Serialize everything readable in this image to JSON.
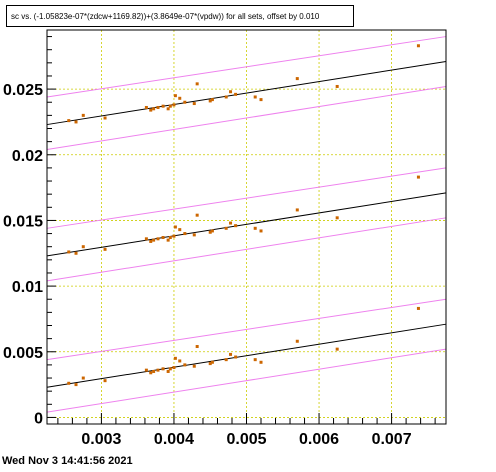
{
  "chart_data": {
    "type": "scatter",
    "title": "sc vs. (-1.05823e-07*(zdcw+1169.82))+(3.8649e-07*(vpdw)) for all sets, offset by 0.010",
    "xlabel": "",
    "ylabel": "",
    "xlim": [
      0.00225,
      0.00775
    ],
    "ylim": [
      -0.0005,
      0.0295
    ],
    "xticks": [
      0.003,
      0.004,
      0.005,
      0.006,
      0.007
    ],
    "xtick_labels": [
      "0.003",
      "0.004",
      "0.005",
      "0.006",
      "0.007"
    ],
    "yticks": [
      0,
      0.005,
      0.01,
      0.015,
      0.02,
      0.025
    ],
    "ytick_labels": [
      "0",
      "0.005",
      "0.01",
      "0.015",
      "0.02",
      "0.025"
    ],
    "grid": true,
    "series": [
      {
        "offset": 0.0,
        "points": [
          [
            0.00255,
            0.0026
          ],
          [
            0.00265,
            0.0025
          ],
          [
            0.00275,
            0.003
          ],
          [
            0.00305,
            0.0028
          ],
          [
            0.00362,
            0.0036
          ],
          [
            0.00368,
            0.0034
          ],
          [
            0.00372,
            0.0035
          ],
          [
            0.00378,
            0.0036
          ],
          [
            0.00385,
            0.0037
          ],
          [
            0.00392,
            0.0035
          ],
          [
            0.00395,
            0.0037
          ],
          [
            0.004,
            0.0038
          ],
          [
            0.00402,
            0.0045
          ],
          [
            0.00408,
            0.0043
          ],
          [
            0.00415,
            0.004
          ],
          [
            0.00428,
            0.0039
          ],
          [
            0.00432,
            0.0054
          ],
          [
            0.0045,
            0.0041
          ],
          [
            0.00453,
            0.0042
          ],
          [
            0.00472,
            0.0044
          ],
          [
            0.00478,
            0.0048
          ],
          [
            0.00485,
            0.0046
          ],
          [
            0.00512,
            0.0044
          ],
          [
            0.0052,
            0.0042
          ],
          [
            0.0057,
            0.0058
          ],
          [
            0.00625,
            0.0052
          ],
          [
            0.00737,
            0.0083
          ]
        ],
        "fit_line": [
          [
            0.00225,
            0.0023
          ],
          [
            0.00775,
            0.0071
          ]
        ],
        "band_upper": [
          [
            0.00225,
            0.0044
          ],
          [
            0.00775,
            0.009
          ]
        ],
        "band_lower": [
          [
            0.00225,
            0.0004
          ],
          [
            0.00775,
            0.0052
          ]
        ]
      },
      {
        "offset": 0.01,
        "points": [
          [
            0.00255,
            0.0126
          ],
          [
            0.00265,
            0.0125
          ],
          [
            0.00275,
            0.013
          ],
          [
            0.00305,
            0.0128
          ],
          [
            0.00362,
            0.0136
          ],
          [
            0.00368,
            0.0134
          ],
          [
            0.00372,
            0.0135
          ],
          [
            0.00378,
            0.0136
          ],
          [
            0.00385,
            0.0137
          ],
          [
            0.00392,
            0.0135
          ],
          [
            0.00395,
            0.0137
          ],
          [
            0.004,
            0.0138
          ],
          [
            0.00402,
            0.0145
          ],
          [
            0.00408,
            0.0143
          ],
          [
            0.00415,
            0.014
          ],
          [
            0.00428,
            0.0139
          ],
          [
            0.00432,
            0.0154
          ],
          [
            0.0045,
            0.0141
          ],
          [
            0.00453,
            0.0142
          ],
          [
            0.00472,
            0.0144
          ],
          [
            0.00478,
            0.0148
          ],
          [
            0.00485,
            0.0146
          ],
          [
            0.00512,
            0.0144
          ],
          [
            0.0052,
            0.0142
          ],
          [
            0.0057,
            0.0158
          ],
          [
            0.00625,
            0.0152
          ],
          [
            0.00737,
            0.0183
          ]
        ],
        "fit_line": [
          [
            0.00225,
            0.0123
          ],
          [
            0.00775,
            0.0171
          ]
        ],
        "band_upper": [
          [
            0.00225,
            0.0144
          ],
          [
            0.00775,
            0.019
          ]
        ],
        "band_lower": [
          [
            0.00225,
            0.0104
          ],
          [
            0.00775,
            0.0152
          ]
        ]
      },
      {
        "offset": 0.02,
        "points": [
          [
            0.00255,
            0.0226
          ],
          [
            0.00265,
            0.0225
          ],
          [
            0.00275,
            0.023
          ],
          [
            0.00305,
            0.0228
          ],
          [
            0.00362,
            0.0236
          ],
          [
            0.00368,
            0.0234
          ],
          [
            0.00372,
            0.0235
          ],
          [
            0.00378,
            0.0236
          ],
          [
            0.00385,
            0.0237
          ],
          [
            0.00392,
            0.0235
          ],
          [
            0.00395,
            0.0237
          ],
          [
            0.004,
            0.0238
          ],
          [
            0.00402,
            0.0245
          ],
          [
            0.00408,
            0.0243
          ],
          [
            0.00415,
            0.024
          ],
          [
            0.00428,
            0.0239
          ],
          [
            0.00432,
            0.0254
          ],
          [
            0.0045,
            0.0241
          ],
          [
            0.00453,
            0.0242
          ],
          [
            0.00472,
            0.0244
          ],
          [
            0.00478,
            0.0248
          ],
          [
            0.00485,
            0.0246
          ],
          [
            0.00512,
            0.0244
          ],
          [
            0.0052,
            0.0242
          ],
          [
            0.0057,
            0.0258
          ],
          [
            0.00625,
            0.0252
          ],
          [
            0.00737,
            0.0283
          ]
        ],
        "fit_line": [
          [
            0.00225,
            0.0223
          ],
          [
            0.00775,
            0.0271
          ]
        ],
        "band_upper": [
          [
            0.00225,
            0.0244
          ],
          [
            0.00775,
            0.029
          ]
        ],
        "band_lower": [
          [
            0.00225,
            0.0204
          ],
          [
            0.00775,
            0.0252
          ]
        ]
      }
    ],
    "colors": {
      "marker": "#cc6600",
      "fit_line": "#000000",
      "band": "#ee82ee",
      "grid": "#cccc00",
      "axis": "#000000"
    }
  },
  "footer": {
    "timestamp": "Wed Nov  3 14:41:56 2021"
  }
}
